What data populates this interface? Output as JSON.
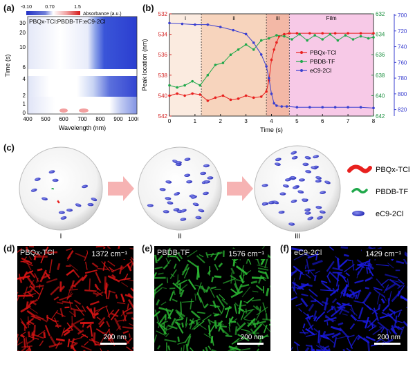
{
  "panel_labels": [
    "(a)",
    "(b)",
    "(c)",
    "(d)",
    "(e)",
    "(f)"
  ],
  "panel_a": {
    "title": "PBQx-TCl:PBDB-TF:eC9-2Cl",
    "colorbar_ticks": [
      "-0.10",
      "0.70",
      "1.5"
    ],
    "colorbar_label": "Absorbance (a.u.)",
    "xlabel": "Wavelength (nm)",
    "ylabel": "Time (s)",
    "xticks": [
      "400",
      "500",
      "600",
      "700",
      "800",
      "900",
      "1000"
    ],
    "yticks": [
      "30",
      "20",
      "10",
      "6",
      "4",
      "2",
      "1",
      "0"
    ]
  },
  "panel_c": {
    "stage_labels": [
      "i",
      "ii",
      "iii"
    ],
    "legend": [
      "PBQx-TCl",
      "PBDB-TF",
      "eC9-2Cl"
    ],
    "colors": {
      "PBQx-TCl": "#e8201e",
      "PBDB-TF": "#1fa84a",
      "eC9-2Cl": "#3a3fd0"
    }
  },
  "images": [
    {
      "material": "PBQx-TCl",
      "wavenumber": "1372 cm⁻¹",
      "scale": "200 nm",
      "color": "#d41414"
    },
    {
      "material": "PBDB-TF",
      "wavenumber": "1576 cm⁻¹",
      "scale": "200 nm",
      "color": "#2ab232"
    },
    {
      "material": "eC9-2Cl",
      "wavenumber": "1429 cm⁻¹",
      "scale": "200 nm",
      "color": "#1a1ae0"
    }
  ],
  "chart_data": [
    {
      "type": "heatmap",
      "xlabel": "Wavelength (nm)",
      "ylabel": "Time (s)",
      "xlim": [
        400,
        1000
      ],
      "ylim": [
        0,
        30
      ],
      "colorbar": {
        "min": -0.1,
        "mid": 0.7,
        "max": 1.5,
        "label": "Absorbance (a.u.)"
      },
      "title": "PBQx-TCl:PBDB-TF:eC9-2Cl"
    },
    {
      "type": "line",
      "xlabel": "Time (s)",
      "ylabel": "Peak location (nm)",
      "xlim": [
        0,
        8
      ],
      "ylim_left": [
        532,
        542
      ],
      "ylim_right_1": [
        632,
        642
      ],
      "ylim_right_2": [
        700,
        830
      ],
      "xticks": [
        0,
        1,
        2,
        3,
        4,
        5,
        6,
        7,
        8
      ],
      "yticks_left": [
        532,
        534,
        536,
        538,
        540,
        542
      ],
      "yticks_right_1": [
        632,
        634,
        636,
        638,
        640,
        642
      ],
      "yticks_right_2": [
        700,
        720,
        740,
        760,
        780,
        800,
        820
      ],
      "stages": [
        {
          "label": "i",
          "from": 0,
          "to": 1.25,
          "color": "#fbebe0"
        },
        {
          "label": "ii",
          "from": 1.25,
          "to": 3.8,
          "color": "#f7d4bd"
        },
        {
          "label": "iii",
          "from": 3.8,
          "to": 4.7,
          "color": "#f3b8a6"
        },
        {
          "label": "Film",
          "from": 4.7,
          "to": 8,
          "color": "#f7c9e7"
        }
      ],
      "series": [
        {
          "name": "PBQx-TCl",
          "axis": "left",
          "color": "#e8201e",
          "x": [
            0.0,
            0.3,
            0.6,
            0.9,
            1.2,
            1.5,
            1.8,
            2.1,
            2.4,
            2.7,
            3.0,
            3.3,
            3.6,
            3.8,
            3.9,
            4.0,
            4.1,
            4.2,
            4.3,
            4.5,
            4.7,
            5.0,
            5.5,
            6.0,
            6.5,
            7.0,
            7.5,
            8.0
          ],
          "y": [
            540.0,
            539.8,
            540.0,
            539.8,
            539.9,
            540.5,
            540.2,
            540.0,
            540.4,
            540.3,
            540.0,
            540.2,
            540.1,
            539.6,
            538.5,
            536.5,
            535.5,
            534.8,
            534.2,
            534.0,
            533.9,
            533.9,
            533.9,
            533.9,
            533.9,
            533.9,
            533.9,
            533.9
          ]
        },
        {
          "name": "PBDB-TF",
          "axis": "right_1",
          "color": "#1fa84a",
          "x": [
            0.0,
            0.3,
            0.6,
            0.9,
            1.2,
            1.5,
            1.8,
            2.1,
            2.4,
            2.7,
            3.0,
            3.3,
            3.6,
            3.9,
            4.2,
            4.5,
            4.8,
            5.1,
            5.4,
            5.7,
            6.0,
            6.3,
            6.6,
            6.9,
            7.2,
            7.5,
            7.8,
            8.0
          ],
          "y": [
            639.0,
            639.2,
            639.0,
            638.6,
            639.0,
            638.0,
            637.0,
            636.8,
            636.0,
            635.5,
            635.0,
            635.5,
            634.6,
            634.4,
            634.1,
            634.2,
            634.5,
            634.0,
            634.6,
            634.1,
            634.5,
            634.0,
            634.6,
            634.1,
            634.5,
            634.2,
            634.4,
            634.3
          ]
        },
        {
          "name": "eC9-2Cl",
          "axis": "right_2",
          "color": "#3a3fd0",
          "x": [
            0.0,
            0.5,
            1.0,
            1.5,
            2.0,
            2.5,
            3.0,
            3.3,
            3.6,
            3.8,
            3.9,
            4.0,
            4.1,
            4.2,
            4.4,
            4.6,
            5.0,
            5.5,
            6.0,
            6.5,
            7.0,
            7.5,
            8.0
          ],
          "y": [
            710,
            711,
            712,
            712,
            715,
            719,
            724,
            735,
            750,
            765,
            780,
            800,
            812,
            815,
            816,
            816,
            817,
            817,
            817,
            817,
            817,
            817,
            818
          ]
        }
      ]
    }
  ]
}
